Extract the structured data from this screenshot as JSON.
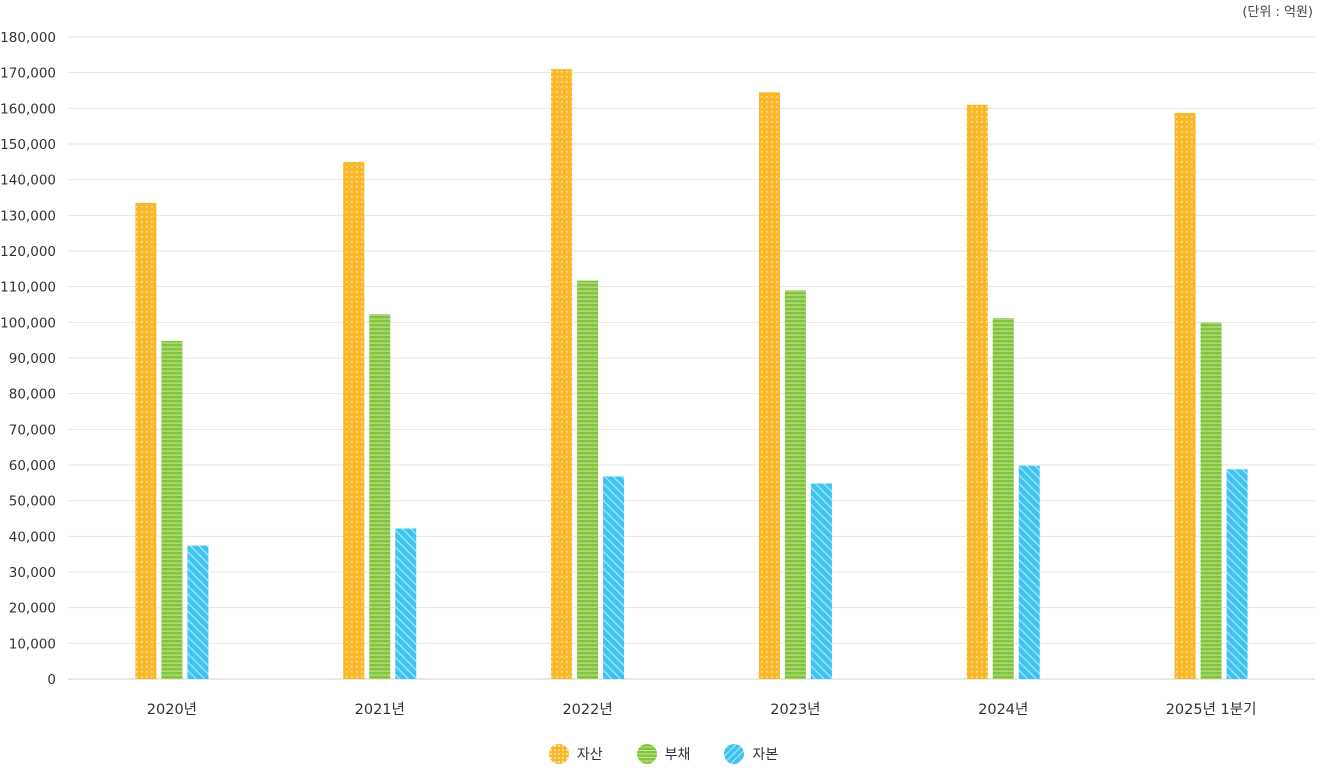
{
  "unit_label": "(단위 : 억원)",
  "colors": {
    "자산": "#f9b829",
    "부채": "#82c43c",
    "자본": "#3fc4f0"
  },
  "chart_data": {
    "type": "bar",
    "title": "",
    "xlabel": "",
    "ylabel": "",
    "ylim": [
      0,
      180000
    ],
    "ytick_step": 10000,
    "yticks": [
      "0",
      "10,000",
      "20,000",
      "30,000",
      "40,000",
      "50,000",
      "60,000",
      "70,000",
      "80,000",
      "90,000",
      "100,000",
      "110,000",
      "120,000",
      "130,000",
      "140,000",
      "150,000",
      "160,000",
      "170,000",
      "180,000"
    ],
    "categories": [
      "2020년",
      "2021년",
      "2022년",
      "2023년",
      "2024년",
      "2025년 1분기"
    ],
    "series": [
      {
        "name": "자산",
        "values": [
          133500,
          145000,
          171000,
          164500,
          161000,
          158700
        ]
      },
      {
        "name": "부채",
        "values": [
          94800,
          102300,
          111700,
          109000,
          101200,
          100000
        ]
      },
      {
        "name": "자본",
        "values": [
          37400,
          42200,
          56800,
          54800,
          59800,
          58800
        ]
      }
    ],
    "legend_position": "bottom-center",
    "grid": true
  }
}
